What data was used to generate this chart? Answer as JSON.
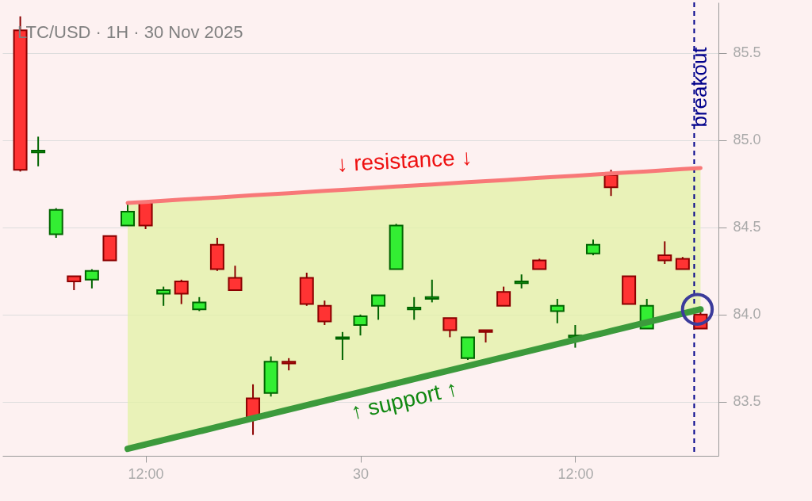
{
  "chart_data": {
    "type": "candlestick",
    "title": "LTC/USD · 1H · 30 Nov 2025",
    "categories": [
      null,
      null,
      null,
      null,
      null,
      null,
      null,
      "12:00",
      null,
      null,
      null,
      null,
      null,
      null,
      null,
      null,
      null,
      null,
      null,
      "30",
      null,
      null,
      null,
      null,
      null,
      null,
      null,
      null,
      null,
      null,
      null,
      "12:00",
      null,
      null,
      null,
      null,
      null,
      null,
      null
    ],
    "ohlc": [
      [
        85.63,
        85.71,
        84.82,
        84.83
      ],
      [
        84.93,
        85.02,
        84.85,
        84.94
      ],
      [
        84.46,
        84.61,
        84.44,
        84.6
      ],
      [
        84.22,
        84.22,
        84.14,
        84.19
      ],
      [
        84.2,
        84.26,
        84.15,
        84.25
      ],
      [
        84.45,
        84.45,
        84.31,
        84.31
      ],
      [
        84.51,
        84.64,
        84.51,
        84.59
      ],
      [
        84.64,
        84.65,
        84.49,
        84.51
      ],
      [
        84.12,
        84.16,
        84.05,
        84.14
      ],
      [
        84.19,
        84.2,
        84.06,
        84.12
      ],
      [
        84.03,
        84.1,
        84.02,
        84.07
      ],
      [
        84.4,
        84.44,
        84.25,
        84.26
      ],
      [
        84.21,
        84.28,
        84.14,
        84.14
      ],
      [
        83.52,
        83.6,
        83.31,
        83.4
      ],
      [
        83.55,
        83.76,
        83.53,
        83.73
      ],
      [
        83.73,
        83.75,
        83.68,
        83.72
      ],
      [
        84.21,
        84.24,
        84.05,
        84.06
      ],
      [
        84.05,
        84.08,
        83.94,
        83.96
      ],
      [
        83.86,
        83.9,
        83.74,
        83.87
      ],
      [
        83.94,
        84.0,
        83.88,
        83.99
      ],
      [
        84.05,
        84.11,
        83.97,
        84.11
      ],
      [
        84.26,
        84.52,
        84.26,
        84.51
      ],
      [
        84.03,
        84.1,
        83.97,
        84.04
      ],
      [
        84.09,
        84.2,
        84.07,
        84.1
      ],
      [
        83.98,
        83.98,
        83.87,
        83.91
      ],
      [
        83.75,
        83.87,
        83.74,
        83.87
      ],
      [
        83.91,
        83.91,
        83.84,
        83.9
      ],
      [
        84.13,
        84.16,
        84.05,
        84.05
      ],
      [
        84.18,
        84.23,
        84.15,
        84.19
      ],
      [
        84.31,
        84.32,
        84.26,
        84.26
      ],
      [
        84.02,
        84.09,
        83.95,
        84.05
      ],
      [
        83.87,
        83.94,
        83.81,
        83.88
      ],
      [
        84.35,
        84.43,
        84.34,
        84.4
      ],
      [
        84.8,
        84.83,
        84.68,
        84.73
      ],
      [
        84.22,
        84.22,
        84.06,
        84.06
      ],
      [
        83.92,
        84.09,
        83.92,
        84.05
      ],
      [
        84.34,
        84.42,
        84.29,
        84.31
      ],
      [
        84.32,
        84.33,
        84.26,
        84.26
      ],
      [
        84.0,
        84.03,
        83.92,
        83.92
      ]
    ],
    "series": [
      {
        "type": "line",
        "color": "#f87878",
        "values": [
          null,
          null,
          null,
          null,
          null,
          null,
          84.64,
          84.646,
          84.653,
          84.659,
          84.665,
          84.671,
          84.678,
          84.684,
          84.69,
          84.696,
          84.703,
          84.709,
          84.715,
          84.721,
          84.728,
          84.734,
          84.74,
          84.746,
          84.753,
          84.759,
          84.765,
          84.771,
          84.778,
          84.784,
          84.79,
          84.796,
          84.803,
          84.809,
          84.815,
          84.821,
          84.828,
          84.834,
          84.84
        ],
        "lower": [
          null,
          null,
          null,
          null,
          null,
          null,
          83.23,
          83.255,
          83.28,
          83.305,
          83.33,
          83.355,
          83.38,
          83.405,
          83.43,
          83.455,
          83.48,
          83.505,
          83.53,
          83.555,
          83.58,
          83.605,
          83.63,
          83.655,
          83.68,
          83.705,
          83.73,
          83.755,
          83.78,
          83.805,
          83.83,
          83.855,
          83.88,
          83.905,
          83.93,
          83.955,
          83.98,
          84.005,
          84.03
        ],
        "upper": [
          null,
          null,
          null,
          null,
          null,
          null,
          84.64,
          84.646,
          84.653,
          84.659,
          84.665,
          84.671,
          84.678,
          84.684,
          84.69,
          84.696,
          84.703,
          84.709,
          84.715,
          84.721,
          84.728,
          84.734,
          84.74,
          84.746,
          84.753,
          84.759,
          84.765,
          84.771,
          84.778,
          84.784,
          84.79,
          84.796,
          84.803,
          84.809,
          84.815,
          84.821,
          84.828,
          84.834,
          84.84
        ]
      },
      {
        "type": "line",
        "color": "#3c9a3c",
        "values": [
          null,
          null,
          null,
          null,
          null,
          null,
          83.23,
          83.255,
          83.28,
          83.305,
          83.33,
          83.355,
          83.38,
          83.405,
          83.43,
          83.455,
          83.48,
          83.505,
          83.53,
          83.555,
          83.58,
          83.605,
          83.63,
          83.655,
          83.68,
          83.705,
          83.73,
          83.755,
          83.78,
          83.805,
          83.83,
          83.855,
          83.88,
          83.905,
          83.93,
          83.955,
          83.98,
          84.005,
          84.03
        ]
      },
      {
        "type": "scatter",
        "color": "#3b3b9b",
        "marker": "circle",
        "values": [
          null,
          null,
          null,
          null,
          null,
          null,
          null,
          null,
          null,
          null,
          null,
          null,
          null,
          null,
          null,
          null,
          null,
          null,
          null,
          null,
          null,
          null,
          null,
          null,
          null,
          null,
          null,
          null,
          null,
          null,
          null,
          null,
          null,
          null,
          null,
          null,
          null,
          null,
          84.03
        ]
      }
    ],
    "annotations": [
      "↓ resistance ↓",
      "↑ support ↑"
    ],
    "ref_lines": [
      {
        "axis": "x",
        "label": "breakout",
        "color": "#00008b",
        "line_style": "dashed"
      }
    ],
    "ylim": [
      83.19,
      85.79
    ],
    "yticks": [
      {
        "value": 83.5,
        "label": "83.5"
      },
      {
        "value": 84,
        "label": "84.0"
      },
      {
        "value": 84.5,
        "label": "84.5"
      },
      {
        "value": 85,
        "label": "85.0"
      },
      {
        "value": 85.5,
        "label": "85.5"
      }
    ],
    "grid": "y"
  }
}
